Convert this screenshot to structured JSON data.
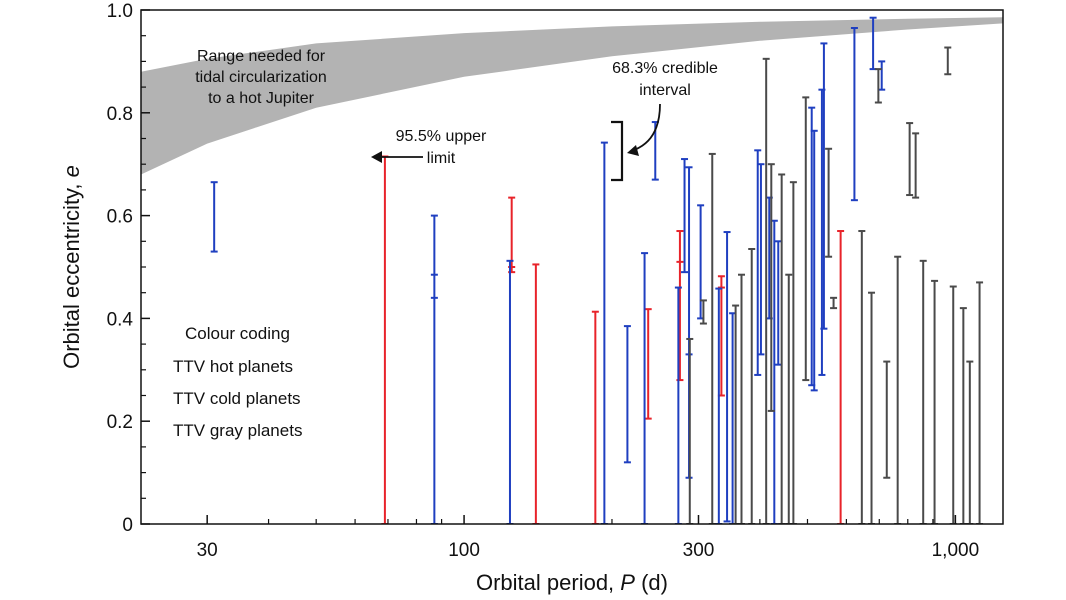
{
  "chart_data": {
    "type": "errorbar-scatter",
    "title": "",
    "xlabel": "Orbital period,",
    "xlabel_symbol": "P",
    "xlabel_unit": "(d)",
    "ylabel": "Orbital eccentricity,",
    "ylabel_symbol": "e",
    "x_scale": "log",
    "xlim": [
      22,
      1250
    ],
    "ylim": [
      0,
      1.0
    ],
    "x_ticks": [
      {
        "value": 30,
        "label": "30"
      },
      {
        "value": 100,
        "label": "100"
      },
      {
        "value": 300,
        "label": "300"
      },
      {
        "value": 1000,
        "label": "1,000"
      }
    ],
    "y_ticks": [
      {
        "value": 0,
        "label": "0"
      },
      {
        "value": 0.2,
        "label": "0.2"
      },
      {
        "value": 0.4,
        "label": "0.4"
      },
      {
        "value": 0.6,
        "label": "0.6"
      },
      {
        "value": 0.8,
        "label": "0.8"
      },
      {
        "value": 1.0,
        "label": "1.0"
      }
    ],
    "y_minor_step": 0.05,
    "colors": {
      "hot": "#e8232a",
      "cold": "#1f3fc0",
      "gray": "#4a4a4a",
      "band": "#b3b3b3"
    },
    "tidal_band": {
      "label_lines": [
        "Range needed for",
        "tidal circularization",
        "to a hot Jupiter"
      ],
      "upper": [
        [
          22,
          0.88
        ],
        [
          30,
          0.905
        ],
        [
          50,
          0.935
        ],
        [
          100,
          0.955
        ],
        [
          200,
          0.968
        ],
        [
          400,
          0.977
        ],
        [
          800,
          0.983
        ],
        [
          1250,
          0.986
        ]
      ],
      "lower": [
        [
          22,
          0.68
        ],
        [
          30,
          0.74
        ],
        [
          50,
          0.81
        ],
        [
          100,
          0.87
        ],
        [
          200,
          0.91
        ],
        [
          400,
          0.94
        ],
        [
          800,
          0.962
        ],
        [
          1250,
          0.974
        ]
      ]
    },
    "annotations": {
      "upper_limit": [
        "95.5% upper",
        "limit"
      ],
      "credible": [
        "68.3% credible",
        "interval"
      ]
    },
    "legend": {
      "title": "Colour coding",
      "items": [
        {
          "label": "TTV hot planets",
          "color": "#e8232a"
        },
        {
          "label": "TTV cold planets",
          "color": "#1f3fc0"
        },
        {
          "label": "TTV gray planets",
          "color": "#999999"
        }
      ]
    },
    "series": [
      {
        "name": "TTV hot planets",
        "class": "hot",
        "points": [
          {
            "p": 69,
            "lo": 0,
            "hi": 0.715,
            "mid": null
          },
          {
            "p": 125,
            "lo": 0.49,
            "hi": 0.635,
            "mid": 0.5
          },
          {
            "p": 140,
            "lo": 0,
            "hi": 0.505,
            "mid": null
          },
          {
            "p": 185,
            "lo": 0,
            "hi": 0.413,
            "mid": null
          },
          {
            "p": 237,
            "lo": 0.205,
            "hi": 0.418,
            "mid": null
          },
          {
            "p": 275,
            "lo": 0.28,
            "hi": 0.57,
            "mid": 0.51
          },
          {
            "p": 334,
            "lo": 0.25,
            "hi": 0.482,
            "mid": 0.46
          },
          {
            "p": 584,
            "lo": 0,
            "hi": 0.57,
            "mid": null
          }
        ]
      },
      {
        "name": "TTV cold planets",
        "class": "cold",
        "points": [
          {
            "p": 31,
            "lo": 0.53,
            "hi": 0.665,
            "mid": null
          },
          {
            "p": 87,
            "lo": 0,
            "hi": 0.6,
            "mid": 0.485,
            "mid2": 0.44
          },
          {
            "p": 124,
            "lo": 0,
            "hi": 0.512,
            "mid": null
          },
          {
            "p": 193,
            "lo": 0,
            "hi": 0.742,
            "mid": null
          },
          {
            "p": 215,
            "lo": 0.12,
            "hi": 0.385,
            "mid": null
          },
          {
            "p": 233,
            "lo": 0,
            "hi": 0.527,
            "mid": null
          },
          {
            "p": 245,
            "lo": 0.67,
            "hi": 0.782,
            "mid": null
          },
          {
            "p": 273,
            "lo": 0,
            "hi": 0.46,
            "mid": null
          },
          {
            "p": 281,
            "lo": 0.49,
            "hi": 0.71,
            "mid": null
          },
          {
            "p": 287,
            "lo": 0.09,
            "hi": 0.694,
            "mid": 0.33
          },
          {
            "p": 303,
            "lo": 0.4,
            "hi": 0.62,
            "mid": null
          },
          {
            "p": 330,
            "lo": 0,
            "hi": 0.458,
            "mid": null
          },
          {
            "p": 343,
            "lo": 0.005,
            "hi": 0.568,
            "mid": null
          },
          {
            "p": 352,
            "lo": 0,
            "hi": 0.41,
            "mid": null
          },
          {
            "p": 396,
            "lo": 0.29,
            "hi": 0.727,
            "mid": null
          },
          {
            "p": 402,
            "lo": 0.33,
            "hi": 0.7,
            "mid": null
          },
          {
            "p": 418,
            "lo": 0.4,
            "hi": 0.635,
            "mid": null
          },
          {
            "p": 428,
            "lo": 0,
            "hi": 0.59,
            "mid": null
          },
          {
            "p": 436,
            "lo": 0.31,
            "hi": 0.55,
            "mid": null
          },
          {
            "p": 510,
            "lo": 0.27,
            "hi": 0.81,
            "mid": null
          },
          {
            "p": 516,
            "lo": 0.26,
            "hi": 0.765,
            "mid": null
          },
          {
            "p": 535,
            "lo": 0.29,
            "hi": 0.845,
            "mid": null
          },
          {
            "p": 540,
            "lo": 0.38,
            "hi": 0.935,
            "mid": null
          },
          {
            "p": 623,
            "lo": 0.63,
            "hi": 0.965,
            "mid": null
          },
          {
            "p": 680,
            "lo": 0.885,
            "hi": 0.985,
            "mid": null
          },
          {
            "p": 708,
            "lo": 0.845,
            "hi": 0.9,
            "mid": null
          }
        ]
      },
      {
        "name": "TTV gray planets",
        "class": "gray",
        "points": [
          {
            "p": 288,
            "lo": 0,
            "hi": 0.36,
            "mid": null
          },
          {
            "p": 307,
            "lo": 0.39,
            "hi": 0.435,
            "mid": null
          },
          {
            "p": 320,
            "lo": 0,
            "hi": 0.72,
            "mid": null
          },
          {
            "p": 357,
            "lo": 0,
            "hi": 0.425,
            "mid": null
          },
          {
            "p": 367,
            "lo": 0,
            "hi": 0.485,
            "mid": null
          },
          {
            "p": 385,
            "lo": 0,
            "hi": 0.535,
            "mid": null
          },
          {
            "p": 412,
            "lo": 0,
            "hi": 0.905,
            "mid": null
          },
          {
            "p": 422,
            "lo": 0.22,
            "hi": 0.7,
            "mid": null
          },
          {
            "p": 443,
            "lo": 0,
            "hi": 0.68,
            "mid": null
          },
          {
            "p": 458,
            "lo": 0,
            "hi": 0.485,
            "mid": null
          },
          {
            "p": 468,
            "lo": 0,
            "hi": 0.665,
            "mid": null
          },
          {
            "p": 496,
            "lo": 0.28,
            "hi": 0.83,
            "mid": null
          },
          {
            "p": 552,
            "lo": 0.52,
            "hi": 0.73,
            "mid": null
          },
          {
            "p": 565,
            "lo": 0.42,
            "hi": 0.44,
            "mid": null
          },
          {
            "p": 645,
            "lo": 0,
            "hi": 0.57,
            "mid": null
          },
          {
            "p": 675,
            "lo": 0,
            "hi": 0.45,
            "mid": null
          },
          {
            "p": 697,
            "lo": 0.82,
            "hi": 0.885,
            "mid": null
          },
          {
            "p": 725,
            "lo": 0.09,
            "hi": 0.316,
            "mid": null
          },
          {
            "p": 763,
            "lo": 0,
            "hi": 0.52,
            "mid": null
          },
          {
            "p": 807,
            "lo": 0.64,
            "hi": 0.78,
            "mid": null
          },
          {
            "p": 830,
            "lo": 0.635,
            "hi": 0.76,
            "mid": null
          },
          {
            "p": 860,
            "lo": 0,
            "hi": 0.512,
            "mid": null
          },
          {
            "p": 907,
            "lo": 0,
            "hi": 0.473,
            "mid": null
          },
          {
            "p": 965,
            "lo": 0.875,
            "hi": 0.927,
            "mid": null
          },
          {
            "p": 990,
            "lo": 0,
            "hi": 0.462,
            "mid": null
          },
          {
            "p": 1038,
            "lo": 0,
            "hi": 0.42,
            "mid": null
          },
          {
            "p": 1070,
            "lo": 0,
            "hi": 0.316,
            "mid": null
          },
          {
            "p": 1120,
            "lo": 0,
            "hi": 0.47,
            "mid": null
          }
        ]
      }
    ]
  }
}
